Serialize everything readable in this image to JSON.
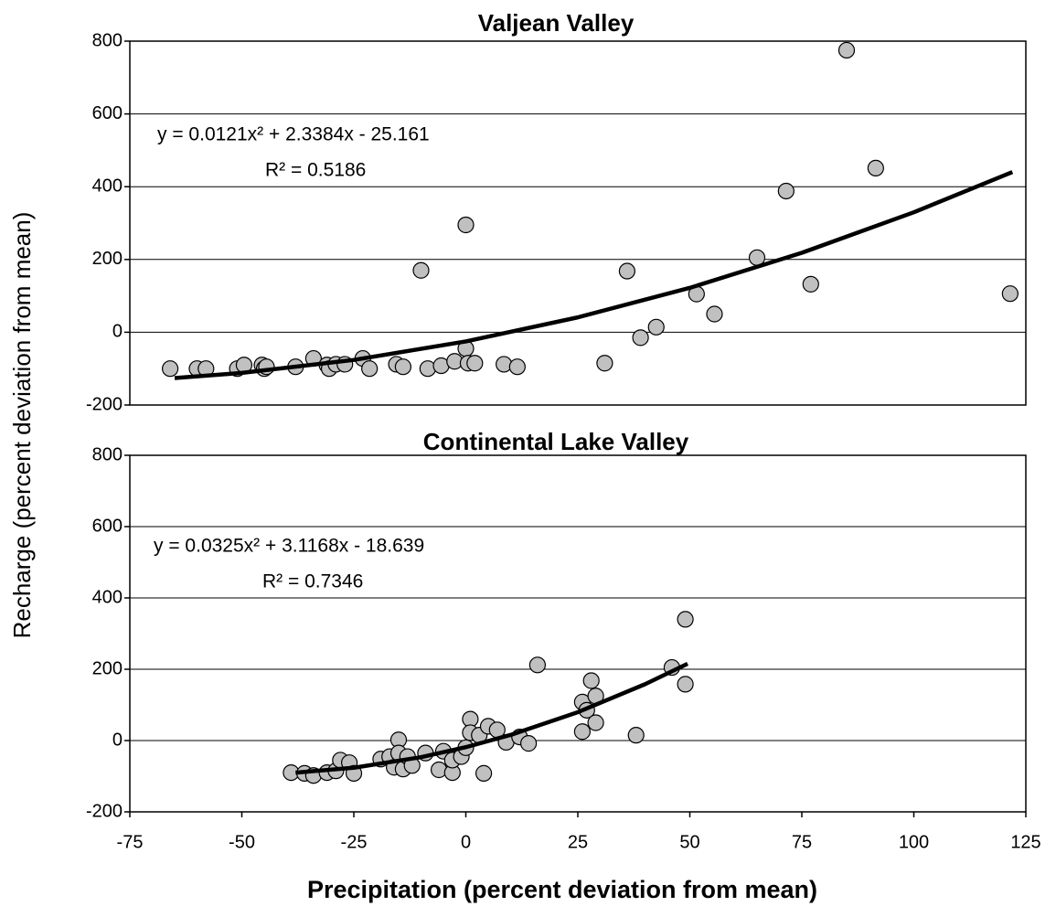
{
  "y_label": "Recharge (percent deviation from mean)",
  "x_label": "Precipitation (percent deviation from mean)",
  "chart_data": [
    {
      "type": "scatter",
      "title": "Valjean Valley",
      "equation": "y = 0.0121x² + 2.3384x - 25.161",
      "r_squared": "R² = 0.5186",
      "xlim": [
        -75,
        125
      ],
      "ylim": [
        -200,
        800
      ],
      "yticks": [
        -200,
        0,
        200,
        400,
        600,
        800
      ],
      "grid": true,
      "series": [
        {
          "type": "scatter",
          "color": "#c0c0c0",
          "x": [
            -66,
            -60,
            -58,
            -51,
            -49.5,
            -45.5,
            -45,
            -44.5,
            -38,
            -34,
            -31,
            -30.5,
            -29,
            -27,
            -23,
            -21.5,
            -15.5,
            -14,
            -10,
            -8.5,
            -5.5,
            -2.5,
            0,
            0,
            0.5,
            2,
            8.5,
            11.5,
            31,
            36,
            39,
            42.5,
            51.5,
            55.5,
            65,
            71.5,
            77,
            85,
            91.5,
            121.5
          ],
          "values": [
            -100,
            -100,
            -100,
            -100,
            -90,
            -90,
            -100,
            -95,
            -95,
            -72,
            -90,
            -100,
            -88,
            -88,
            -72,
            -100,
            -88,
            -95,
            170,
            -100,
            -92,
            -80,
            295,
            -45,
            -85,
            -85,
            -88,
            -95,
            -85,
            168,
            -15,
            14,
            105,
            50,
            205,
            388,
            132,
            775,
            451,
            106
          ]
        },
        {
          "type": "line",
          "color": "#000000",
          "x": [
            -65,
            -50,
            -25,
            0,
            25,
            50,
            75,
            100,
            122
          ],
          "values": [
            -126,
            -111.8,
            -76.1,
            -25.2,
            40.9,
            122,
            218.3,
            329.7,
            440.2
          ]
        }
      ]
    },
    {
      "type": "scatter",
      "title": "Continental Lake Valley",
      "equation": "y = 0.0325x² + 3.1168x - 18.639",
      "r_squared": "R² = 0.7346",
      "xlim": [
        -75,
        125
      ],
      "xticks": [
        -75,
        -50,
        -25,
        0,
        25,
        50,
        75,
        100,
        125
      ],
      "ylim": [
        -200,
        800
      ],
      "yticks": [
        -200,
        0,
        200,
        400,
        600,
        800
      ],
      "grid": true,
      "series": [
        {
          "type": "scatter",
          "color": "#c0c0c0",
          "x": [
            -39,
            -36,
            -34,
            -31,
            -29,
            -28,
            -26,
            -25,
            -19,
            -17,
            -16,
            -15,
            -15,
            -14,
            -13,
            -12,
            -9,
            -6,
            -5,
            -3,
            -3,
            -1,
            0,
            1,
            1,
            3,
            4,
            5,
            7,
            9,
            12,
            14,
            16,
            26,
            26,
            27,
            28,
            29,
            29,
            38,
            46,
            49,
            49
          ],
          "values": [
            -90,
            -92,
            -98,
            -90,
            -85,
            -55,
            -62,
            -92,
            -52,
            -45,
            -75,
            2,
            -35,
            -80,
            -45,
            -70,
            -35,
            -82,
            -30,
            -90,
            -55,
            -45,
            -20,
            60,
            22,
            15,
            -92,
            40,
            30,
            -5,
            10,
            -8,
            212,
            25,
            108,
            85,
            168,
            125,
            50,
            15,
            205,
            158,
            340
          ]
        },
        {
          "type": "line",
          "color": "#000000",
          "x": [
            -38,
            -25,
            -10,
            0,
            10,
            25,
            40,
            49.5
          ],
          "values": [
            -90.1,
            -76.2,
            -46.6,
            -18.6,
            15.8,
            79.6,
            158,
            215.3
          ]
        }
      ]
    }
  ]
}
